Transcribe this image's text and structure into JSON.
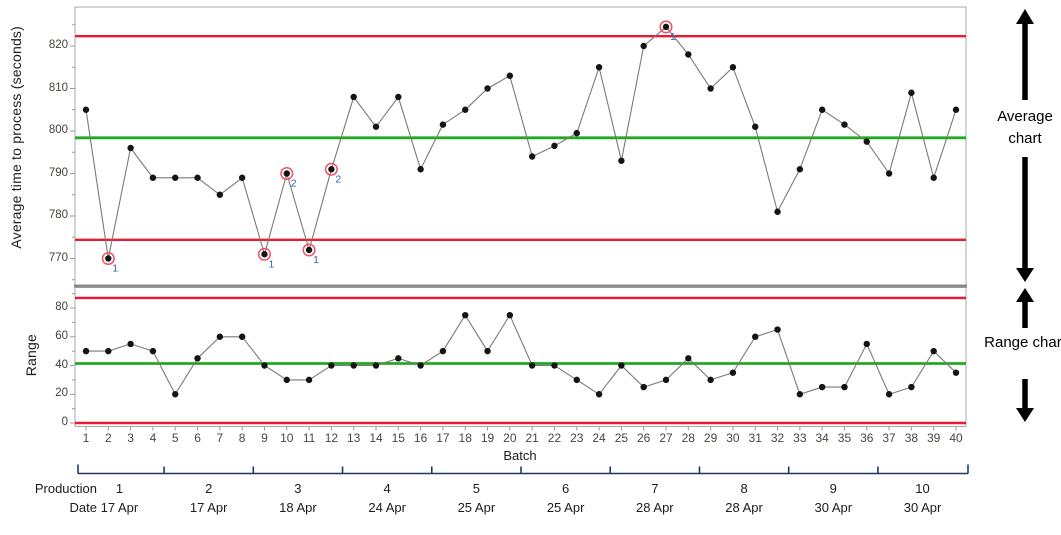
{
  "colors": {
    "control_limit": "#ea1a32",
    "center_line": "#1faa1f",
    "series_line": "#7a7a7a",
    "point": "#141414",
    "flag_ring": "#f05064",
    "flag_label": "#2f62b4",
    "frame": "#ababab",
    "separator": "#8a8a8a",
    "tick": "#9a9a9a",
    "bracket": "#1f3864",
    "arrow": "#000000"
  },
  "labels": {
    "avg_ylabel": "Average time to process (seconds)",
    "range_ylabel": "Range",
    "xlabel": "Batch",
    "production_row": "Production",
    "date_row": "Date",
    "avg_annotation": "Average chart",
    "range_annotation": "Range chart"
  },
  "chart_data": [
    {
      "type": "line",
      "name": "average-chart",
      "ylabel": "Average time to process (seconds)",
      "x": [
        1,
        2,
        3,
        4,
        5,
        6,
        7,
        8,
        9,
        10,
        11,
        12,
        13,
        14,
        15,
        16,
        17,
        18,
        19,
        20,
        21,
        22,
        23,
        24,
        25,
        26,
        27,
        28,
        29,
        30,
        31,
        32,
        33,
        34,
        35,
        36,
        37,
        38,
        39,
        40
      ],
      "values": [
        805,
        770,
        796,
        789,
        789,
        789,
        785,
        789,
        771,
        790,
        772,
        791,
        808,
        801,
        808,
        791,
        801.5,
        805,
        810,
        813,
        794,
        796.5,
        799.5,
        815,
        793,
        820,
        824.5,
        818,
        810,
        815,
        801,
        781,
        791,
        805,
        801.5,
        797.5,
        790,
        809,
        789,
        805
      ],
      "center_line": 798.4,
      "ucl": 822.3,
      "lcl": 774.4,
      "yticks": [
        770,
        780,
        790,
        800,
        810,
        820
      ],
      "yticks_minor": [
        765,
        775,
        785,
        795,
        805,
        815,
        825
      ],
      "ylim": [
        764,
        829
      ],
      "legend": "none",
      "grid": false,
      "flagged_points": [
        {
          "x": 2,
          "test": "1"
        },
        {
          "x": 9,
          "test": "1"
        },
        {
          "x": 10,
          "test": "2"
        },
        {
          "x": 11,
          "test": "1"
        },
        {
          "x": 12,
          "test": "2"
        },
        {
          "x": 27,
          "test": "1"
        }
      ]
    },
    {
      "type": "line",
      "name": "range-chart",
      "ylabel": "Range",
      "xlabel": "Batch",
      "x": [
        1,
        2,
        3,
        4,
        5,
        6,
        7,
        8,
        9,
        10,
        11,
        12,
        13,
        14,
        15,
        16,
        17,
        18,
        19,
        20,
        21,
        22,
        23,
        24,
        25,
        26,
        27,
        28,
        29,
        30,
        31,
        32,
        33,
        34,
        35,
        36,
        37,
        38,
        39,
        40
      ],
      "values": [
        50,
        50,
        55,
        50,
        20,
        45,
        60,
        60,
        40,
        30,
        30,
        40,
        40,
        40,
        45,
        40,
        50,
        75,
        50,
        75,
        40,
        40,
        30,
        20,
        40,
        25,
        30,
        45,
        30,
        35,
        60,
        65,
        20,
        25,
        25,
        55,
        20,
        25,
        50,
        35
      ],
      "center_line": 41.4,
      "ucl": 87,
      "lcl": 0,
      "yticks": [
        0,
        20,
        40,
        60,
        80
      ],
      "yticks_minor": [
        10,
        30,
        50,
        70,
        90
      ],
      "ylim": [
        -2,
        96
      ],
      "legend": "none",
      "grid": false,
      "flagged_points": []
    }
  ],
  "x_axis": {
    "label": "Batch",
    "ticks": [
      "1",
      "2",
      "3",
      "4",
      "5",
      "6",
      "7",
      "8",
      "9",
      "10",
      "11",
      "12",
      "13",
      "14",
      "15",
      "16",
      "17",
      "18",
      "19",
      "20",
      "21",
      "22",
      "23",
      "24",
      "25",
      "26",
      "27",
      "28",
      "29",
      "30",
      "31",
      "32",
      "33",
      "34",
      "35",
      "36",
      "37",
      "38",
      "39",
      "40"
    ]
  },
  "production_axis": {
    "groups": [
      {
        "production": "1",
        "date": "17 Apr"
      },
      {
        "production": "2",
        "date": "17 Apr"
      },
      {
        "production": "3",
        "date": "18 Apr"
      },
      {
        "production": "4",
        "date": "24 Apr"
      },
      {
        "production": "5",
        "date": "25 Apr"
      },
      {
        "production": "6",
        "date": "25 Apr"
      },
      {
        "production": "7",
        "date": "28 Apr"
      },
      {
        "production": "8",
        "date": "28 Apr"
      },
      {
        "production": "9",
        "date": "30 Apr"
      },
      {
        "production": "10",
        "date": "30 Apr"
      }
    ]
  }
}
